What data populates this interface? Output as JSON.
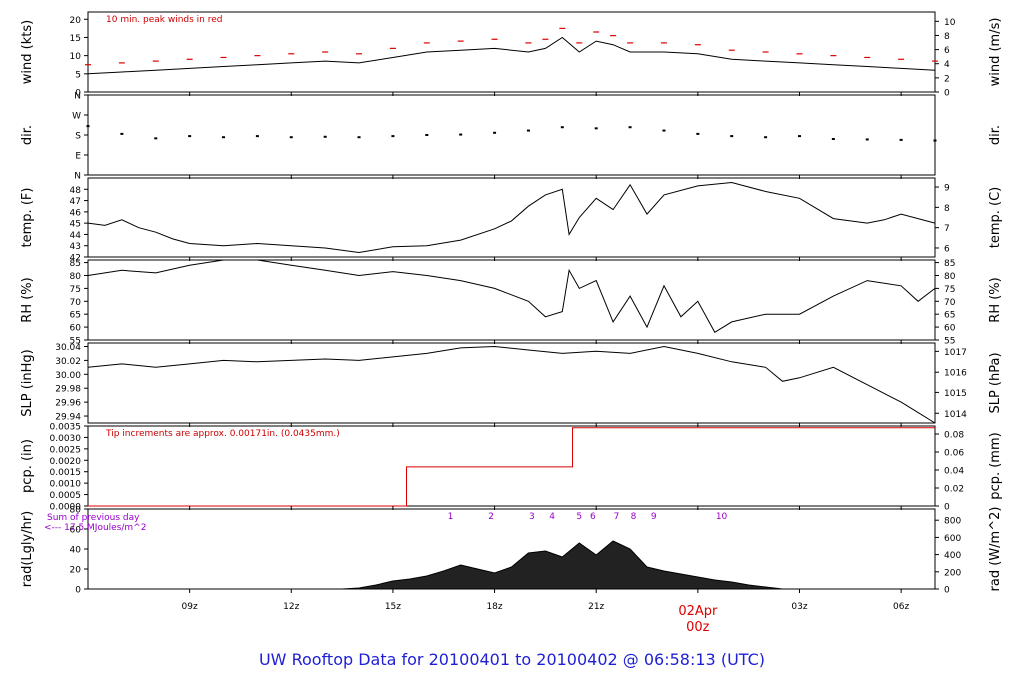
{
  "title": "UW Rooftop Data for 20100401  to  20100402 @ 06:58:13  (UTC)",
  "colors": {
    "axis": "#000000",
    "data": "#000000",
    "peak": "#dd0000",
    "pcp": "#dd0000",
    "note": "#cc0000",
    "solar": "#9900cc",
    "date": "#dd0000",
    "title": "#1f1fd6",
    "fill": "#222222"
  },
  "chart_data": [
    {
      "id": "wind",
      "type": "line",
      "ylabel": "wind (kts)",
      "ylabel_right": "wind (m/s)",
      "ylim": [
        0,
        22
      ],
      "yticks": [
        0,
        5,
        10,
        15,
        20
      ],
      "yticks_right": [
        {
          "label": "0",
          "at": 0
        },
        {
          "label": "2",
          "at": 3.89
        },
        {
          "label": "4",
          "at": 7.78
        },
        {
          "label": "6",
          "at": 11.66
        },
        {
          "label": "8",
          "at": 15.55
        },
        {
          "label": "10",
          "at": 19.44
        }
      ],
      "annotation": "10 min. peak winds in red",
      "x": [
        6,
        7,
        8,
        9,
        10,
        11,
        12,
        13,
        14,
        15,
        16,
        17,
        18,
        19,
        19.5,
        20,
        20.5,
        21,
        21.5,
        22,
        23,
        24,
        25,
        26,
        27,
        28,
        29,
        30,
        31
      ],
      "values": [
        5,
        5.5,
        6,
        6.5,
        7,
        7.5,
        8,
        8.5,
        8,
        9.5,
        11,
        11.5,
        12,
        11,
        12,
        15,
        11,
        14,
        13,
        11,
        11,
        10.5,
        9,
        8.5,
        8,
        7.5,
        7,
        6.5,
        6
      ]
    },
    {
      "id": "dir",
      "type": "scatter",
      "ylabel": "dir.",
      "ylabel_right": "dir.",
      "ylim": [
        0,
        360
      ],
      "yticks": [
        {
          "label": "N",
          "at": 0
        },
        {
          "label": "E",
          "at": 90
        },
        {
          "label": "S",
          "at": 180
        },
        {
          "label": "W",
          "at": 270
        },
        {
          "label": "N",
          "at": 360
        }
      ],
      "x": [
        6,
        7,
        8,
        9,
        10,
        11,
        12,
        13,
        14,
        15,
        16,
        17,
        18,
        19,
        20,
        21,
        22,
        23,
        24,
        25,
        26,
        27,
        28,
        29,
        30,
        31
      ],
      "values": [
        220,
        185,
        165,
        175,
        170,
        175,
        170,
        172,
        170,
        175,
        180,
        182,
        190,
        200,
        215,
        210,
        215,
        200,
        185,
        175,
        170,
        175,
        162,
        160,
        158,
        155
      ]
    },
    {
      "id": "temp",
      "type": "line",
      "ylabel": "temp. (F)",
      "ylabel_right": "temp. (C)",
      "ylim": [
        42,
        49
      ],
      "yticks": [
        42,
        43,
        44,
        45,
        46,
        47,
        48
      ],
      "yticks_right": [
        {
          "label": "6",
          "at": 42.8
        },
        {
          "label": "7",
          "at": 44.6
        },
        {
          "label": "8",
          "at": 46.4
        },
        {
          "label": "9",
          "at": 48.2
        }
      ],
      "x": [
        6,
        6.5,
        7,
        7.5,
        8,
        8.5,
        9,
        10,
        11,
        12,
        13,
        14,
        15,
        16,
        17,
        18,
        18.5,
        19,
        19.5,
        20,
        20.2,
        20.5,
        21,
        21.5,
        22,
        22.5,
        23,
        24,
        25,
        26,
        27,
        28,
        29,
        29.5,
        30,
        31
      ],
      "values": [
        45,
        44.8,
        45.3,
        44.6,
        44.2,
        43.6,
        43.2,
        43,
        43.2,
        43,
        42.8,
        42.4,
        42.9,
        43,
        43.5,
        44.5,
        45.2,
        46.5,
        47.5,
        48,
        44,
        45.5,
        47.2,
        46.2,
        48.4,
        45.8,
        47.5,
        48.3,
        48.6,
        47.8,
        47.2,
        45.4,
        45,
        45.3,
        45.8,
        45
      ]
    },
    {
      "id": "rh",
      "type": "line",
      "ylabel": "RH (%)",
      "ylabel_right": "RH (%)",
      "ylim": [
        55,
        86
      ],
      "yticks": [
        55,
        60,
        65,
        70,
        75,
        80,
        85
      ],
      "yticks_right": [
        {
          "label": "55",
          "at": 55
        },
        {
          "label": "60",
          "at": 60
        },
        {
          "label": "65",
          "at": 65
        },
        {
          "label": "70",
          "at": 70
        },
        {
          "label": "75",
          "at": 75
        },
        {
          "label": "80",
          "at": 80
        },
        {
          "label": "85",
          "at": 85
        }
      ],
      "x": [
        6,
        7,
        8,
        9,
        10,
        11,
        12,
        13,
        14,
        15,
        16,
        17,
        18,
        19,
        19.5,
        20,
        20.2,
        20.5,
        21,
        21.5,
        22,
        22.5,
        23,
        23.5,
        24,
        24.5,
        25,
        26,
        27,
        28,
        29,
        30,
        30.5,
        31
      ],
      "values": [
        80,
        82,
        81,
        84,
        86,
        86,
        84,
        82,
        80,
        81.5,
        80,
        78,
        75,
        70,
        64,
        66,
        82,
        75,
        78,
        62,
        72,
        60,
        76,
        64,
        70,
        58,
        62,
        65,
        65,
        72,
        78,
        76,
        70,
        75
      ]
    },
    {
      "id": "slp",
      "type": "line",
      "ylabel": "SLP (inHg)",
      "ylabel_right": "SLP (hPa)",
      "ylim": [
        29.93,
        30.045
      ],
      "yticks": [
        29.94,
        29.96,
        29.98,
        30.0,
        30.02,
        30.04
      ],
      "yticks_right": [
        {
          "label": "1014",
          "at": 29.944
        },
        {
          "label": "1015",
          "at": 29.974
        },
        {
          "label": "1016",
          "at": 30.003
        },
        {
          "label": "1017",
          "at": 30.033
        }
      ],
      "x": [
        6,
        7,
        8,
        9,
        10,
        11,
        12,
        13,
        14,
        15,
        16,
        17,
        18,
        19,
        20,
        21,
        22,
        23,
        24,
        25,
        26,
        26.5,
        27,
        28,
        29,
        30,
        30.5,
        31
      ],
      "values": [
        30.01,
        30.015,
        30.01,
        30.015,
        30.02,
        30.018,
        30.02,
        30.022,
        30.02,
        30.025,
        30.03,
        30.038,
        30.04,
        30.035,
        30.03,
        30.033,
        30.03,
        30.04,
        30.03,
        30.018,
        30.01,
        29.99,
        29.995,
        30.01,
        29.985,
        29.96,
        29.945,
        29.93
      ]
    },
    {
      "id": "pcp",
      "type": "step",
      "ylabel": "pcp. (in)",
      "ylabel_right": "pcp. (mm)",
      "ylim": [
        0,
        0.0035
      ],
      "yticks": [
        0,
        0.0005,
        0.001,
        0.0015,
        0.002,
        0.0025,
        0.003,
        0.0035
      ],
      "yticks_right": [
        {
          "label": "0",
          "at": 0
        },
        {
          "label": "0.02",
          "at": 0.000787
        },
        {
          "label": "0.04",
          "at": 0.001575
        },
        {
          "label": "0.06",
          "at": 0.002362
        },
        {
          "label": "0.08",
          "at": 0.00315
        }
      ],
      "annotation": "Tip increments are approx. 0.00171in. (0.0435mm.)",
      "x": [
        6,
        15.4,
        15.4,
        20.3,
        20.3,
        31
      ],
      "values": [
        0,
        0,
        0.00171,
        0.00171,
        0.00342,
        0.00342
      ]
    },
    {
      "id": "rad",
      "type": "area",
      "ylabel": "rad(Lgly/hr)",
      "ylabel_right": "rad (W/m^2)",
      "ylim": [
        0,
        80
      ],
      "yticks": [
        0,
        20,
        40,
        60,
        80
      ],
      "yticks_right": [
        {
          "label": "0",
          "at": 0
        },
        {
          "label": "200",
          "at": 17.2
        },
        {
          "label": "400",
          "at": 34.4
        },
        {
          "label": "600",
          "at": 51.6
        },
        {
          "label": "800",
          "at": 68.8
        }
      ],
      "annotation_1": "Sum of previous day",
      "annotation_2": "<--- 17.5 MJoules/m^2",
      "solar_times": [
        {
          "label": "1",
          "x": 16.7
        },
        {
          "label": "2",
          "x": 17.9
        },
        {
          "label": "3",
          "x": 19.1
        },
        {
          "label": "4",
          "x": 19.7
        },
        {
          "label": "5",
          "x": 20.5
        },
        {
          "label": "6",
          "x": 20.9
        },
        {
          "label": "7",
          "x": 21.6
        },
        {
          "label": "8",
          "x": 22.1
        },
        {
          "label": "9",
          "x": 22.7
        },
        {
          "label": "10",
          "x": 24.7
        }
      ],
      "x": [
        13.5,
        14,
        14.5,
        15,
        15.5,
        16,
        16.5,
        17,
        17.5,
        18,
        18.5,
        19,
        19.5,
        20,
        20.5,
        21,
        21.5,
        22,
        22.5,
        23,
        23.5,
        24,
        24.5,
        25,
        25.5,
        26,
        26.5
      ],
      "values": [
        0,
        1,
        4,
        8,
        10,
        13,
        18,
        24,
        20,
        16,
        22,
        36,
        38,
        32,
        46,
        34,
        48,
        40,
        22,
        18,
        15,
        12,
        9,
        7,
        4,
        2,
        0
      ]
    }
  ],
  "x_axis": {
    "xlim": [
      6,
      31
    ],
    "ticks": [
      {
        "label": "09z",
        "x": 9
      },
      {
        "label": "12z",
        "x": 12
      },
      {
        "label": "15z",
        "x": 15
      },
      {
        "label": "18z",
        "x": 18
      },
      {
        "label": "21z",
        "x": 21
      },
      {
        "label": "00z",
        "x": 24
      },
      {
        "label": "03z",
        "x": 27
      },
      {
        "label": "06z",
        "x": 30
      }
    ],
    "date_label": "02Apr",
    "date_hour": "00z",
    "date_x": 24
  }
}
